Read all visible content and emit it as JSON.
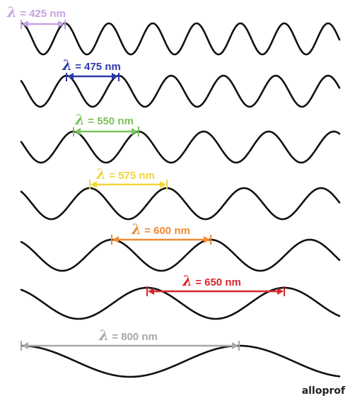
{
  "diagram": {
    "lambda_symbol": "λ",
    "waves": [
      {
        "wavelength_nm": 425,
        "label_rest": " = 425 nm",
        "color": "#c8a0e0"
      },
      {
        "wavelength_nm": 475,
        "label_rest": " = 475 nm",
        "color": "#2e3aa8"
      },
      {
        "wavelength_nm": 550,
        "label_rest": " = 550 nm",
        "color": "#79c35a"
      },
      {
        "wavelength_nm": 575,
        "label_rest": " = 575 nm",
        "color": "#f0d63a"
      },
      {
        "wavelength_nm": 600,
        "label_rest": " = 600 nm",
        "color": "#ef8a35"
      },
      {
        "wavelength_nm": 650,
        "label_rest": " = 650 nm",
        "color": "#d9262b"
      },
      {
        "wavelength_nm": 800,
        "label_rest": " = 800 nm",
        "color": "#a8a8a8"
      }
    ],
    "wave_color": "#111111"
  },
  "brand": {
    "logo_text": "alloprof"
  }
}
